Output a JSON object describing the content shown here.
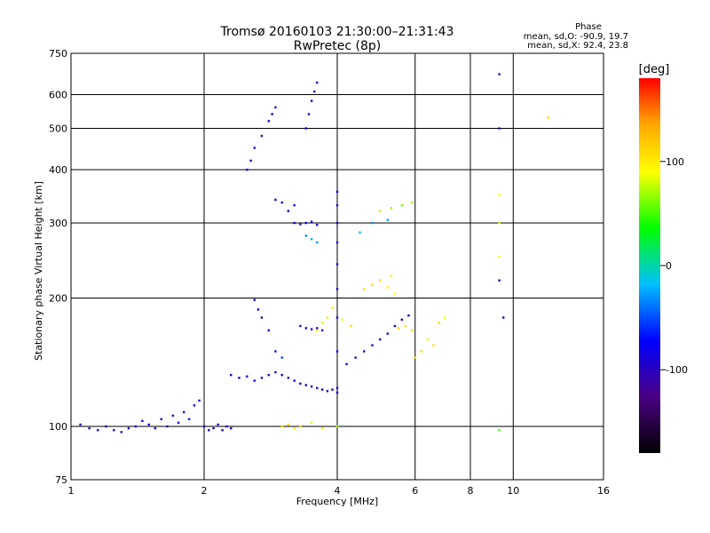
{
  "chart_data": {
    "type": "scatter",
    "title": "Tromsø 20160103 21:30:00–21:31:43",
    "subtitle": "RwPretec (8p)",
    "xlabel": "Frequency [MHz]",
    "ylabel": "Stationary phase Virtual Height [km]",
    "x_scale": "log",
    "y_scale": "log",
    "xlim": [
      1,
      16
    ],
    "ylim": [
      75,
      750
    ],
    "x_ticks": [
      1,
      2,
      4,
      6,
      8,
      10,
      16
    ],
    "y_ticks": [
      75,
      100,
      200,
      300,
      400,
      500,
      600,
      750
    ],
    "grid": true,
    "phase_box": {
      "title": "Phase",
      "line_o": "mean, sd,O: -90.9, 19.7",
      "line_x": "mean, sd,X:  92.4, 23.8"
    },
    "colorbar": {
      "label": "[deg]",
      "range": [
        -180,
        180
      ],
      "ticks": [
        100,
        0,
        -100
      ],
      "colors": [
        "#000000",
        "#4b0082",
        "#0000ff",
        "#00bfff",
        "#00ff00",
        "#ffff00",
        "#ffa500",
        "#ff0000"
      ]
    },
    "series": [
      {
        "points": [
          [
            1.05,
            101,
            -100
          ],
          [
            1.1,
            99,
            -110
          ],
          [
            1.15,
            98,
            -95
          ],
          [
            1.2,
            100,
            -105
          ],
          [
            1.25,
            98,
            -100
          ],
          [
            1.3,
            97,
            -110
          ],
          [
            1.35,
            99,
            -90
          ],
          [
            1.4,
            100,
            -100
          ],
          [
            1.45,
            103,
            -95
          ],
          [
            1.5,
            101,
            -80
          ],
          [
            1.55,
            99,
            -100
          ],
          [
            1.6,
            104,
            -90
          ],
          [
            1.65,
            100,
            -110
          ],
          [
            1.7,
            106,
            -85
          ],
          [
            1.75,
            102,
            -100
          ],
          [
            1.8,
            108,
            -95
          ],
          [
            1.85,
            104,
            -70
          ],
          [
            1.9,
            112,
            -100
          ],
          [
            1.95,
            115,
            -90
          ],
          [
            2.0,
            100,
            -100
          ],
          [
            2.05,
            98,
            -95
          ],
          [
            2.1,
            99,
            -105
          ],
          [
            2.15,
            101,
            -100
          ],
          [
            2.2,
            98,
            -100
          ],
          [
            2.25,
            100,
            -90
          ],
          [
            2.3,
            99,
            -100
          ],
          [
            2.3,
            132,
            -100
          ],
          [
            2.4,
            130,
            -95
          ],
          [
            2.5,
            131,
            -100
          ],
          [
            2.6,
            128,
            -90
          ],
          [
            2.7,
            130,
            -80
          ],
          [
            2.8,
            132,
            -100
          ],
          [
            2.9,
            134,
            -95
          ],
          [
            3.0,
            132,
            -100
          ],
          [
            3.1,
            130,
            -100
          ],
          [
            3.2,
            128,
            -95
          ],
          [
            3.3,
            126,
            -100
          ],
          [
            3.4,
            125,
            -95
          ],
          [
            3.5,
            124,
            -100
          ],
          [
            3.6,
            123,
            -90
          ],
          [
            3.7,
            122,
            -100
          ],
          [
            3.8,
            121,
            -105
          ],
          [
            3.9,
            122,
            -100
          ],
          [
            4.0,
            123,
            -95
          ],
          [
            2.6,
            198,
            -100
          ],
          [
            2.65,
            188,
            -95
          ],
          [
            2.7,
            180,
            -100
          ],
          [
            2.8,
            168,
            -90
          ],
          [
            2.9,
            150,
            -70
          ],
          [
            3.0,
            145,
            -60
          ],
          [
            3.3,
            172,
            -100
          ],
          [
            3.4,
            170,
            -95
          ],
          [
            3.5,
            169,
            -100
          ],
          [
            3.6,
            170,
            -100
          ],
          [
            3.7,
            168,
            -105
          ],
          [
            3.2,
            300,
            -95
          ],
          [
            3.3,
            298,
            -100
          ],
          [
            3.4,
            300,
            -90
          ],
          [
            3.5,
            302,
            -80
          ],
          [
            3.6,
            297,
            -95
          ],
          [
            3.4,
            280,
            -40
          ],
          [
            3.5,
            275,
            -30
          ],
          [
            3.6,
            270,
            -35
          ],
          [
            2.9,
            340,
            -100
          ],
          [
            3.0,
            335,
            -95
          ],
          [
            3.1,
            320,
            -90
          ],
          [
            3.2,
            330,
            -100
          ],
          [
            2.5,
            400,
            -100
          ],
          [
            2.55,
            420,
            -95
          ],
          [
            2.6,
            450,
            -100
          ],
          [
            2.7,
            480,
            -100
          ],
          [
            2.8,
            520,
            -95
          ],
          [
            2.9,
            560,
            -100
          ],
          [
            2.85,
            540,
            -90
          ],
          [
            3.4,
            500,
            -90
          ],
          [
            3.45,
            540,
            -95
          ],
          [
            3.5,
            580,
            -100
          ],
          [
            3.55,
            610,
            -95
          ],
          [
            3.6,
            640,
            -100
          ],
          [
            4.0,
            120,
            -100
          ],
          [
            4.0,
            150,
            -100
          ],
          [
            4.0,
            180,
            -100
          ],
          [
            4.0,
            210,
            -100
          ],
          [
            4.0,
            240,
            -100
          ],
          [
            4.0,
            270,
            -100
          ],
          [
            4.0,
            300,
            -95
          ],
          [
            4.0,
            330,
            -100
          ],
          [
            4.0,
            355,
            -100
          ],
          [
            4.2,
            140,
            -95
          ],
          [
            4.4,
            145,
            -100
          ],
          [
            4.6,
            150,
            -100
          ],
          [
            4.8,
            155,
            -95
          ],
          [
            5.0,
            160,
            -100
          ],
          [
            5.2,
            165,
            -100
          ],
          [
            5.4,
            172,
            -100
          ],
          [
            5.6,
            178,
            -100
          ],
          [
            5.8,
            182,
            -95
          ],
          [
            3.6,
            168,
            80
          ],
          [
            3.7,
            175,
            70
          ],
          [
            3.8,
            180,
            90
          ],
          [
            3.9,
            190,
            85
          ],
          [
            4.1,
            178,
            75
          ],
          [
            4.3,
            172,
            95
          ],
          [
            4.6,
            210,
            90
          ],
          [
            4.8,
            215,
            100
          ],
          [
            5.0,
            220,
            95
          ],
          [
            5.2,
            212,
            85
          ],
          [
            5.4,
            205,
            80
          ],
          [
            5.3,
            225,
            90
          ],
          [
            5.5,
            170,
            100
          ],
          [
            5.7,
            172,
            90
          ],
          [
            5.9,
            168,
            95
          ],
          [
            6.0,
            145,
            95
          ],
          [
            6.2,
            150,
            100
          ],
          [
            6.4,
            160,
            85
          ],
          [
            6.6,
            155,
            90
          ],
          [
            6.8,
            175,
            100
          ],
          [
            7.0,
            180,
            80
          ],
          [
            5.0,
            320,
            60
          ],
          [
            5.3,
            325,
            55
          ],
          [
            5.6,
            330,
            50
          ],
          [
            5.9,
            335,
            60
          ],
          [
            4.8,
            300,
            -40
          ],
          [
            5.2,
            305,
            -35
          ],
          [
            4.5,
            285,
            -20
          ],
          [
            3.0,
            100,
            95
          ],
          [
            3.1,
            101,
            100
          ],
          [
            3.2,
            99,
            90
          ],
          [
            3.3,
            100,
            95
          ],
          [
            3.5,
            102,
            85
          ],
          [
            3.7,
            99,
            90
          ],
          [
            4.0,
            100,
            60
          ],
          [
            9.3,
            670,
            -100
          ],
          [
            9.3,
            500,
            -110
          ],
          [
            9.3,
            350,
            80
          ],
          [
            9.3,
            300,
            70
          ],
          [
            9.3,
            250,
            90
          ],
          [
            9.3,
            220,
            -100
          ],
          [
            9.5,
            180,
            -100
          ],
          [
            9.3,
            98,
            40
          ],
          [
            12.0,
            530,
            100
          ]
        ]
      }
    ]
  }
}
